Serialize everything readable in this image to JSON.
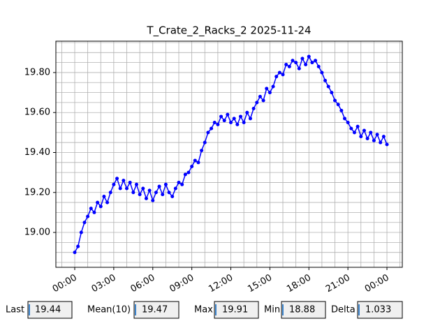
{
  "chart_data": {
    "type": "line",
    "title": "T_Crate_2_Racks_2 2025-11-24",
    "x": [
      0,
      0.25,
      0.5,
      0.75,
      1,
      1.25,
      1.5,
      1.75,
      2,
      2.25,
      2.5,
      2.75,
      3,
      3.25,
      3.5,
      3.75,
      4,
      4.25,
      4.5,
      4.75,
      5,
      5.25,
      5.5,
      5.75,
      6,
      6.25,
      6.5,
      6.75,
      7,
      7.25,
      7.5,
      7.75,
      8,
      8.25,
      8.5,
      8.75,
      9,
      9.25,
      9.5,
      9.75,
      10,
      10.25,
      10.5,
      10.75,
      11,
      11.25,
      11.5,
      11.75,
      12,
      12.25,
      12.5,
      12.75,
      13,
      13.25,
      13.5,
      13.75,
      14,
      14.25,
      14.5,
      14.75,
      15,
      15.25,
      15.5,
      15.75,
      16,
      16.25,
      16.5,
      16.75,
      17,
      17.25,
      17.5,
      17.75,
      18,
      18.25,
      18.5,
      18.75,
      19,
      19.25,
      19.5,
      19.75,
      20,
      20.25,
      20.5,
      20.75,
      21,
      21.25,
      21.5,
      21.75,
      22,
      22.25,
      22.5,
      22.75,
      23,
      23.25,
      23.5,
      23.75,
      24
    ],
    "series": [
      {
        "color": "#0000ff",
        "values": [
          18.9,
          18.93,
          19.0,
          19.05,
          19.08,
          19.12,
          19.1,
          19.15,
          19.13,
          19.18,
          19.15,
          19.2,
          19.24,
          19.27,
          19.22,
          19.26,
          19.22,
          19.25,
          19.2,
          19.24,
          19.19,
          19.22,
          19.17,
          19.21,
          19.16,
          19.2,
          19.23,
          19.19,
          19.24,
          19.2,
          19.18,
          19.22,
          19.25,
          19.24,
          19.29,
          19.3,
          19.33,
          19.36,
          19.35,
          19.41,
          19.45,
          19.5,
          19.52,
          19.55,
          19.54,
          19.58,
          19.56,
          19.59,
          19.55,
          19.57,
          19.54,
          19.58,
          19.55,
          19.6,
          19.57,
          19.62,
          19.65,
          19.68,
          19.66,
          19.72,
          19.7,
          19.73,
          19.78,
          19.8,
          19.79,
          19.84,
          19.83,
          19.86,
          19.85,
          19.82,
          19.87,
          19.84,
          19.88,
          19.85,
          19.86,
          19.83,
          19.8,
          19.76,
          19.73,
          19.7,
          19.66,
          19.64,
          19.61,
          19.57,
          19.55,
          19.52,
          19.5,
          19.53,
          19.48,
          19.51,
          19.47,
          19.5,
          19.46,
          19.49,
          19.45,
          19.48,
          19.44
        ]
      }
    ],
    "xlim": [
      -1.45,
      25.18
    ],
    "ylim": [
      18.8255,
      19.957
    ],
    "xticks": [
      {
        "value": 0,
        "label": "00:00"
      },
      {
        "value": 3,
        "label": "03:00"
      },
      {
        "value": 6,
        "label": "06:00"
      },
      {
        "value": 9,
        "label": "09:00"
      },
      {
        "value": 12,
        "label": "12:00"
      },
      {
        "value": 15,
        "label": "15:00"
      },
      {
        "value": 18,
        "label": "18:00"
      },
      {
        "value": 21,
        "label": "21:00"
      },
      {
        "value": 24,
        "label": "00:00"
      }
    ],
    "yticks": [
      {
        "value": 19,
        "label": "19.00"
      },
      {
        "value": 19.2,
        "label": "19.20"
      },
      {
        "value": 19.4,
        "label": "19.40"
      },
      {
        "value": 19.6,
        "label": "19.60"
      },
      {
        "value": 19.8,
        "label": "19.80"
      }
    ],
    "xminorticks": [
      -1,
      0,
      1,
      2,
      3,
      4,
      5,
      6,
      7,
      8,
      9,
      10,
      11,
      12,
      13,
      14,
      15,
      16,
      17,
      18,
      19,
      20,
      21,
      22,
      23,
      24,
      25
    ],
    "yminorticks": [
      18.85,
      18.9,
      18.95,
      19,
      19.05,
      19.1,
      19.15,
      19.2,
      19.25,
      19.3,
      19.35,
      19.4,
      19.45,
      19.5,
      19.55,
      19.6,
      19.65,
      19.7,
      19.75,
      19.8,
      19.85,
      19.9,
      19.95
    ],
    "grid": true
  },
  "stats": [
    {
      "label": "Last",
      "value": 19.44
    },
    {
      "label": "Mean(10)",
      "value": 19.47
    },
    {
      "label": "Max",
      "value": 19.91
    },
    {
      "label": "Min",
      "value": 18.88
    },
    {
      "label": "Delta",
      "value": 1.033
    }
  ]
}
